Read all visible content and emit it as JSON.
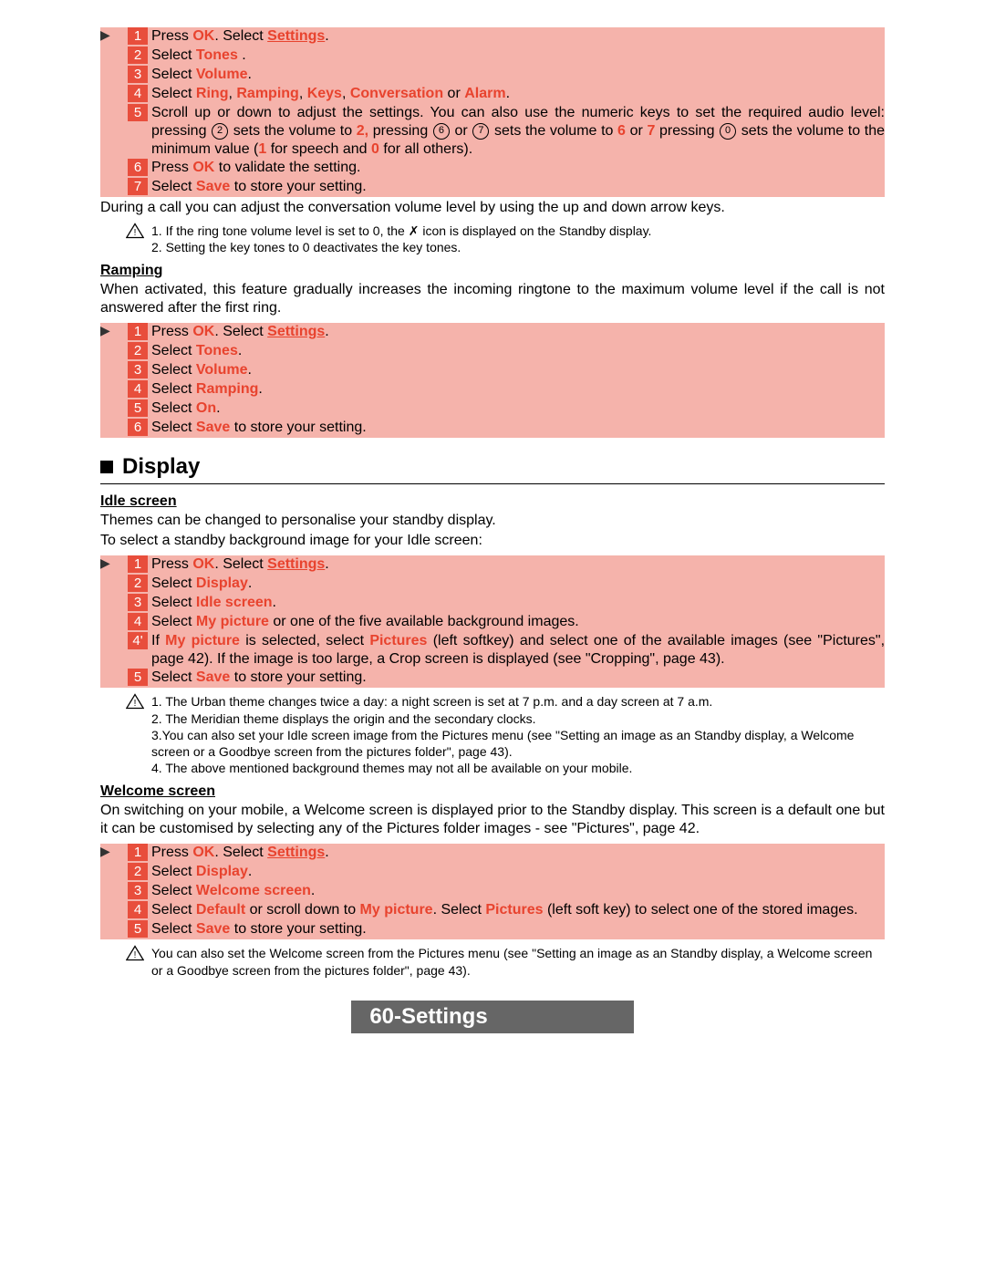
{
  "colors": {
    "step_bg": "#f5b3ab",
    "num_bg": "#e84e3c",
    "highlight": "#e8432e",
    "footer_bg": "#666666"
  },
  "block1": {
    "steps": [
      {
        "n": "1",
        "parts": [
          {
            "t": "Press "
          },
          {
            "t": "OK",
            "s": "hl"
          },
          {
            "t": ". Select "
          },
          {
            "t": "Settings",
            "s": "hlu"
          },
          {
            "t": "."
          }
        ]
      },
      {
        "n": "2",
        "parts": [
          {
            "t": "Select "
          },
          {
            "t": "Tones",
            "s": "hl"
          },
          {
            "t": " ."
          }
        ]
      },
      {
        "n": "3",
        "parts": [
          {
            "t": "Select "
          },
          {
            "t": "Volume",
            "s": "hl"
          },
          {
            "t": "."
          }
        ]
      },
      {
        "n": "4",
        "parts": [
          {
            "t": "Select "
          },
          {
            "t": "Ring",
            "s": "hl"
          },
          {
            "t": ", "
          },
          {
            "t": "Ramping",
            "s": "hl"
          },
          {
            "t": ", "
          },
          {
            "t": "Keys",
            "s": "hl"
          },
          {
            "t": ", "
          },
          {
            "t": "Conversation",
            "s": "hl"
          },
          {
            "t": " or "
          },
          {
            "t": "Alarm",
            "s": "hl"
          },
          {
            "t": "."
          }
        ]
      },
      {
        "n": "5",
        "parts": [
          {
            "t": "Scroll up or down to adjust the settings. You can also use the numeric keys to set the required audio level: pressing "
          },
          {
            "t": "2",
            "s": "circ"
          },
          {
            "t": " sets the volume to "
          },
          {
            "t": "2,",
            "s": "hl"
          },
          {
            "t": " pressing "
          },
          {
            "t": "6",
            "s": "circ"
          },
          {
            "t": " or "
          },
          {
            "t": "7",
            "s": "circ"
          },
          {
            "t": " sets the volume to "
          },
          {
            "t": "6",
            "s": "hl"
          },
          {
            "t": " or "
          },
          {
            "t": "7",
            "s": "hl"
          },
          {
            "t": " pressing "
          },
          {
            "t": "0",
            "s": "circ"
          },
          {
            "t": " sets the volume to the minimum value ("
          },
          {
            "t": "1",
            "s": "hl"
          },
          {
            "t": " for speech and "
          },
          {
            "t": "0",
            "s": "hl"
          },
          {
            "t": " for all others)."
          }
        ]
      },
      {
        "n": "6",
        "parts": [
          {
            "t": "Press "
          },
          {
            "t": "OK",
            "s": "hl"
          },
          {
            "t": " to validate the setting."
          }
        ]
      },
      {
        "n": "7",
        "parts": [
          {
            "t": "Select "
          },
          {
            "t": "Save",
            "s": "hl"
          },
          {
            "t": " to store your setting."
          }
        ]
      }
    ]
  },
  "para1": "During a call you can adjust the conversation volume level by using the up and down arrow keys.",
  "note1": {
    "lines": [
      "1. If the ring tone volume level is set to  0, the ✗ icon is displayed on the Standby display.",
      "2. Setting the key tones to 0 deactivates the key tones."
    ]
  },
  "ramp_head": "Ramping",
  "ramp_para": "When activated, this feature gradually increases the incoming ringtone to the maximum volume level if the call is not answered after the first ring.",
  "block2": {
    "steps": [
      {
        "n": "1",
        "parts": [
          {
            "t": "Press "
          },
          {
            "t": "OK",
            "s": "hl"
          },
          {
            "t": ". Select "
          },
          {
            "t": "Settings",
            "s": "hlu"
          },
          {
            "t": "."
          }
        ]
      },
      {
        "n": "2",
        "parts": [
          {
            "t": "Select "
          },
          {
            "t": "Tones",
            "s": "hl"
          },
          {
            "t": "."
          }
        ]
      },
      {
        "n": "3",
        "parts": [
          {
            "t": "Select "
          },
          {
            "t": "Volume",
            "s": "hl"
          },
          {
            "t": "."
          }
        ]
      },
      {
        "n": "4",
        "parts": [
          {
            "t": "Select "
          },
          {
            "t": "Ramping",
            "s": "hl"
          },
          {
            "t": "."
          }
        ]
      },
      {
        "n": "5",
        "parts": [
          {
            "t": "Select "
          },
          {
            "t": "On",
            "s": "hl"
          },
          {
            "t": "."
          }
        ]
      },
      {
        "n": "6",
        "parts": [
          {
            "t": "Select "
          },
          {
            "t": "Save",
            "s": "hl"
          },
          {
            "t": " to store your setting."
          }
        ]
      }
    ]
  },
  "section_display": "Display",
  "idle_head": "Idle screen",
  "idle_para1": "Themes can be changed  to personalise your standby display.",
  "idle_para2": "To select a standby background image for your Idle screen:",
  "block3": {
    "steps": [
      {
        "n": "1",
        "parts": [
          {
            "t": "Press "
          },
          {
            "t": "OK",
            "s": "hl"
          },
          {
            "t": ". Select "
          },
          {
            "t": "Settings",
            "s": "hlu"
          },
          {
            "t": "."
          }
        ]
      },
      {
        "n": "2",
        "parts": [
          {
            "t": "Select "
          },
          {
            "t": "Display",
            "s": "hl"
          },
          {
            "t": "."
          }
        ]
      },
      {
        "n": "3",
        "parts": [
          {
            "t": "Select "
          },
          {
            "t": "Idle screen",
            "s": "hl"
          },
          {
            "t": "."
          }
        ]
      },
      {
        "n": "4",
        "parts": [
          {
            "t": "Select "
          },
          {
            "t": "My picture",
            "s": "hl"
          },
          {
            "t": " or one of the five available background images."
          }
        ]
      },
      {
        "n": "4'",
        "parts": [
          {
            "t": "If "
          },
          {
            "t": "My picture",
            "s": "hl"
          },
          {
            "t": " is selected, select "
          },
          {
            "t": "Pictures",
            "s": "hl"
          },
          {
            "t": " (left softkey) and select one of the available images (see \"Pictures\", page 42). If the image is too large, a Crop screen is displayed (see \"Cropping\", page 43)."
          }
        ]
      },
      {
        "n": "5",
        "parts": [
          {
            "t": "Select "
          },
          {
            "t": "Save",
            "s": "hl"
          },
          {
            "t": " to store your setting."
          }
        ]
      }
    ]
  },
  "note2": {
    "lines": [
      "1. The Urban theme changes twice a day: a night screen is set at 7 p.m. and a day screen at 7 a.m.",
      "2. The Meridian theme displays the origin and the secondary clocks.",
      "3.You can also set your Idle screen image from the Pictures menu (see \"Setting an image as an Standby display, a Welcome screen or a Goodbye screen from the pictures folder\", page 43).",
      "4. The above mentioned background themes may not all be available on your mobile."
    ]
  },
  "welcome_head": "Welcome screen",
  "welcome_para": "On switching on your mobile, a Welcome screen is displayed prior to the Standby display. This screen is a default one but it can be customised by selecting any of the Pictures folder images - see \"Pictures\", page 42.",
  "block4": {
    "steps": [
      {
        "n": "1",
        "parts": [
          {
            "t": "Press "
          },
          {
            "t": "OK",
            "s": "hl"
          },
          {
            "t": ". Select "
          },
          {
            "t": "Settings",
            "s": "hlu"
          },
          {
            "t": "."
          }
        ]
      },
      {
        "n": "2",
        "parts": [
          {
            "t": "Select "
          },
          {
            "t": "Display",
            "s": "hl"
          },
          {
            "t": "."
          }
        ]
      },
      {
        "n": "3",
        "parts": [
          {
            "t": "Select "
          },
          {
            "t": "Welcome screen",
            "s": "hl"
          },
          {
            "t": "."
          }
        ]
      },
      {
        "n": "4",
        "parts": [
          {
            "t": "Select "
          },
          {
            "t": "Default",
            "s": "hl"
          },
          {
            "t": " or scroll down to "
          },
          {
            "t": "My picture",
            "s": "hl"
          },
          {
            "t": ". Select "
          },
          {
            "t": "Pictures",
            "s": "hl"
          },
          {
            "t": " (left soft key) to select one of the stored images."
          }
        ]
      },
      {
        "n": "5",
        "parts": [
          {
            "t": "Select "
          },
          {
            "t": "Save",
            "s": "hl"
          },
          {
            "t": " to store your setting."
          }
        ]
      }
    ]
  },
  "note3": {
    "lines": [
      "You can also set the Welcome screen from the Pictures menu (see \"Setting an image as an Standby display, a Welcome screen or a Goodbye screen from the pictures folder\", page 43)."
    ]
  },
  "footer": {
    "page": "60-",
    "title": "Settings"
  }
}
